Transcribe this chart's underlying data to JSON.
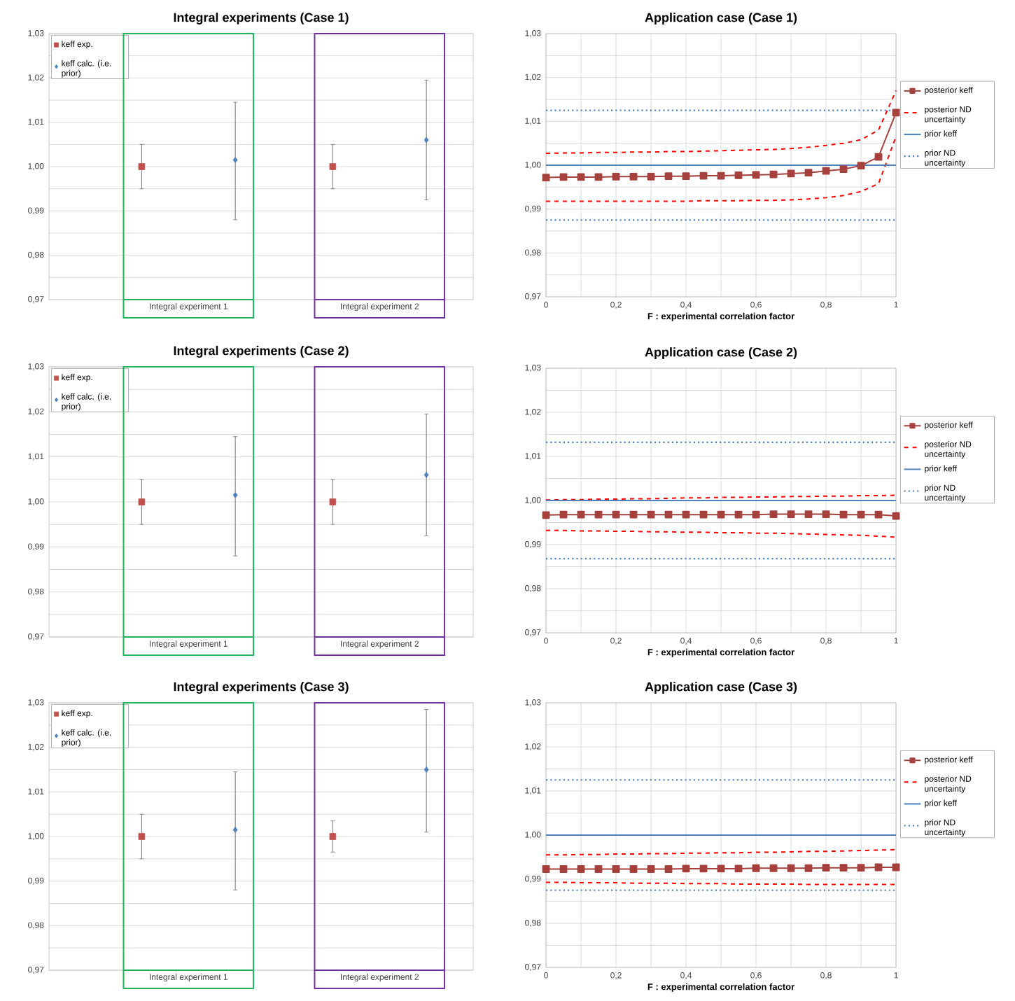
{
  "chart_data": [
    {
      "type": "scatter",
      "title": "Integral experiments (Case 1)",
      "categories": [
        "Integral experiment 1",
        "Integral experiment 2"
      ],
      "ylim": [
        0.97,
        1.03
      ],
      "yticks": [
        {
          "value": 0.97,
          "label": "0,97"
        },
        {
          "value": 0.975,
          "label": null
        },
        {
          "value": 0.98,
          "label": "0,98"
        },
        {
          "value": 0.985,
          "label": null
        },
        {
          "value": 0.99,
          "label": "0,99"
        },
        {
          "value": 0.995,
          "label": null
        },
        {
          "value": 1.0,
          "label": "1,00"
        },
        {
          "value": 1.005,
          "label": null
        },
        {
          "value": 1.01,
          "label": "1,01"
        },
        {
          "value": 1.015,
          "label": null
        },
        {
          "value": 1.02,
          "label": "1,02"
        },
        {
          "value": 1.025,
          "label": null
        },
        {
          "value": 1.03,
          "label": "1,03"
        }
      ],
      "grid": "y",
      "legend": "top left",
      "series": [
        {
          "name": "keff exp.",
          "color": "#c0504d",
          "marker": "square",
          "values": [
            1.0,
            1.0
          ],
          "errors": [
            0.005,
            0.005
          ]
        },
        {
          "name": "keff calc. (i.e. prior)",
          "color": "#4f81bd",
          "marker": "diamond",
          "values": [
            1.0015,
            1.006
          ],
          "errors": [
            [
              0.988,
              1.0145
            ],
            [
              0.9925,
              1.0195
            ]
          ]
        }
      ]
    },
    {
      "type": "line",
      "title": "Application case (Case 1)",
      "xlabel": "F : experimental correlation factor",
      "x": [
        0,
        0.05,
        0.1,
        0.15,
        0.2,
        0.25,
        0.3,
        0.35,
        0.4,
        0.45,
        0.5,
        0.55,
        0.6,
        0.65,
        0.7,
        0.75,
        0.8,
        0.85,
        0.9,
        0.95,
        1
      ],
      "xlim": [
        0,
        1
      ],
      "xticks": [
        {
          "value": 0,
          "label": "0"
        },
        {
          "value": 0.1,
          "label": null
        },
        {
          "value": 0.2,
          "label": "0,2"
        },
        {
          "value": 0.3,
          "label": null
        },
        {
          "value": 0.4,
          "label": "0,4"
        },
        {
          "value": 0.5,
          "label": null
        },
        {
          "value": 0.6,
          "label": "0,6"
        },
        {
          "value": 0.7,
          "label": null
        },
        {
          "value": 0.8,
          "label": "0,8"
        },
        {
          "value": 0.9,
          "label": null
        },
        {
          "value": 1,
          "label": "1"
        }
      ],
      "ylim": [
        0.97,
        1.03
      ],
      "yticks": [
        {
          "value": 0.97,
          "label": "0,97"
        },
        {
          "value": 0.975,
          "label": null
        },
        {
          "value": 0.98,
          "label": "0,98"
        },
        {
          "value": 0.985,
          "label": null
        },
        {
          "value": 0.99,
          "label": "0,99"
        },
        {
          "value": 0.995,
          "label": null
        },
        {
          "value": 1.0,
          "label": "1,00"
        },
        {
          "value": 1.005,
          "label": null
        },
        {
          "value": 1.01,
          "label": "1,01"
        },
        {
          "value": 1.015,
          "label": null
        },
        {
          "value": 1.02,
          "label": "1,02"
        },
        {
          "value": 1.025,
          "label": null
        },
        {
          "value": 1.03,
          "label": "1,03"
        }
      ],
      "grid": true,
      "legend": "right",
      "series": [
        {
          "name": "posterior keff",
          "color": "#a5403d",
          "marker": "square",
          "line_style": "solid",
          "values": [
            0.9972,
            0.9973,
            0.9973,
            0.9973,
            0.9974,
            0.9974,
            0.9974,
            0.9975,
            0.9975,
            0.9976,
            0.9976,
            0.9977,
            0.9978,
            0.9979,
            0.9981,
            0.9983,
            0.9987,
            0.9991,
            0.9999,
            1.0019,
            1.012
          ]
        },
        {
          "name": "posterior ND uncertainty",
          "color": "#ff0000",
          "marker": "none",
          "line_style": "dashed",
          "values": [
            1.0027,
            1.0028,
            1.0028,
            1.0029,
            1.0029,
            1.003,
            1.003,
            1.0031,
            1.0031,
            1.0032,
            1.0033,
            1.0034,
            1.0035,
            1.0036,
            1.0038,
            1.0041,
            1.0045,
            1.005,
            1.0058,
            1.008,
            1.017
          ]
        },
        {
          "color": "#ff0000",
          "marker": "none",
          "line_style": "dashed",
          "values": [
            0.9918,
            0.9918,
            0.9918,
            0.9918,
            0.9918,
            0.9918,
            0.9918,
            0.9918,
            0.9918,
            0.9919,
            0.9919,
            0.9919,
            0.992,
            0.992,
            0.9921,
            0.9923,
            0.9926,
            0.9931,
            0.994,
            0.9958,
            1.0065
          ]
        }
      ],
      "ref_lines": [
        {
          "axis": "y",
          "value": 1.0,
          "label": "prior keff",
          "color": "#4f81bd",
          "line_style": "solid"
        },
        {
          "axis": "y",
          "value": 1.0125,
          "label": "prior ND uncertainty",
          "color": "#4f81bd",
          "line_style": "dotted"
        },
        {
          "axis": "y",
          "value": 0.9875,
          "color": "#4f81bd",
          "line_style": "dotted"
        }
      ]
    },
    {
      "type": "scatter",
      "title": "Integral experiments (Case 2)",
      "categories": [
        "Integral experiment 1",
        "Integral experiment 2"
      ],
      "ylim": [
        0.97,
        1.03
      ],
      "yticks": [
        {
          "value": 0.97,
          "label": "0,97"
        },
        {
          "value": 0.975,
          "label": null
        },
        {
          "value": 0.98,
          "label": "0,98"
        },
        {
          "value": 0.985,
          "label": null
        },
        {
          "value": 0.99,
          "label": "0,99"
        },
        {
          "value": 0.995,
          "label": null
        },
        {
          "value": 1.0,
          "label": "1,00"
        },
        {
          "value": 1.005,
          "label": null
        },
        {
          "value": 1.01,
          "label": "1,01"
        },
        {
          "value": 1.015,
          "label": null
        },
        {
          "value": 1.02,
          "label": "1,02"
        },
        {
          "value": 1.025,
          "label": null
        },
        {
          "value": 1.03,
          "label": "1,03"
        }
      ],
      "grid": "y",
      "legend": "top left",
      "series": [
        {
          "name": "keff exp.",
          "color": "#c0504d",
          "marker": "square",
          "values": [
            1.0,
            1.0
          ],
          "errors": [
            0.005,
            0.005
          ]
        },
        {
          "name": "keff calc. (i.e. prior)",
          "color": "#4f81bd",
          "marker": "diamond",
          "values": [
            1.0015,
            1.006
          ],
          "errors": [
            [
              0.988,
              1.0145
            ],
            [
              0.9925,
              1.0195
            ]
          ]
        }
      ]
    },
    {
      "type": "line",
      "title": "Application case (Case 2)",
      "xlabel": "F : experimental correlation factor",
      "x": [
        0,
        0.05,
        0.1,
        0.15,
        0.2,
        0.25,
        0.3,
        0.35,
        0.4,
        0.45,
        0.5,
        0.55,
        0.6,
        0.65,
        0.7,
        0.75,
        0.8,
        0.85,
        0.9,
        0.95,
        1
      ],
      "xlim": [
        0,
        1
      ],
      "xticks": [
        {
          "value": 0,
          "label": "0"
        },
        {
          "value": 0.1,
          "label": null
        },
        {
          "value": 0.2,
          "label": "0,2"
        },
        {
          "value": 0.3,
          "label": null
        },
        {
          "value": 0.4,
          "label": "0,4"
        },
        {
          "value": 0.5,
          "label": null
        },
        {
          "value": 0.6,
          "label": "0,6"
        },
        {
          "value": 0.7,
          "label": null
        },
        {
          "value": 0.8,
          "label": "0,8"
        },
        {
          "value": 0.9,
          "label": null
        },
        {
          "value": 1,
          "label": "1"
        }
      ],
      "ylim": [
        0.97,
        1.03
      ],
      "yticks": [
        {
          "value": 0.97,
          "label": "0,97"
        },
        {
          "value": 0.975,
          "label": null
        },
        {
          "value": 0.98,
          "label": "0,98"
        },
        {
          "value": 0.985,
          "label": null
        },
        {
          "value": 0.99,
          "label": "0,99"
        },
        {
          "value": 0.995,
          "label": null
        },
        {
          "value": 1.0,
          "label": "1,00"
        },
        {
          "value": 1.005,
          "label": null
        },
        {
          "value": 1.01,
          "label": "1,01"
        },
        {
          "value": 1.015,
          "label": null
        },
        {
          "value": 1.02,
          "label": "1,02"
        },
        {
          "value": 1.025,
          "label": null
        },
        {
          "value": 1.03,
          "label": "1,03"
        }
      ],
      "grid": true,
      "legend": "right",
      "series": [
        {
          "name": "posterior keff",
          "color": "#a5403d",
          "marker": "square",
          "line_style": "solid",
          "values": [
            0.9967,
            0.9968,
            0.9968,
            0.9968,
            0.9968,
            0.9968,
            0.9968,
            0.9968,
            0.9968,
            0.9968,
            0.9968,
            0.9968,
            0.9968,
            0.9969,
            0.9969,
            0.9969,
            0.9969,
            0.9968,
            0.9968,
            0.9968,
            0.9965
          ]
        },
        {
          "name": "posterior ND uncertainty",
          "color": "#ff0000",
          "marker": "none",
          "line_style": "dashed",
          "values": [
            1.0001,
            1.0002,
            1.0002,
            1.0003,
            1.0003,
            1.0004,
            1.0004,
            1.0005,
            1.0006,
            1.0006,
            1.0007,
            1.0007,
            1.0008,
            1.0008,
            1.0009,
            1.0009,
            1.001,
            1.001,
            1.0011,
            1.0011,
            1.0012
          ]
        },
        {
          "color": "#ff0000",
          "marker": "none",
          "line_style": "dashed",
          "values": [
            0.9932,
            0.9932,
            0.9931,
            0.9931,
            0.993,
            0.993,
            0.9929,
            0.9929,
            0.9928,
            0.9928,
            0.9927,
            0.9927,
            0.9926,
            0.9926,
            0.9925,
            0.9924,
            0.9923,
            0.9922,
            0.9921,
            0.9919,
            0.9917
          ]
        }
      ],
      "ref_lines": [
        {
          "axis": "y",
          "value": 1.0,
          "label": "prior keff",
          "color": "#4f81bd",
          "line_style": "solid"
        },
        {
          "axis": "y",
          "value": 1.0132,
          "label": "prior ND uncertainty",
          "color": "#4f81bd",
          "line_style": "dotted"
        },
        {
          "axis": "y",
          "value": 0.9868,
          "color": "#4f81bd",
          "line_style": "dotted"
        }
      ]
    },
    {
      "type": "scatter",
      "title": "Integral experiments (Case 3)",
      "categories": [
        "Integral experiment 1",
        "Integral experiment 2"
      ],
      "ylim": [
        0.97,
        1.03
      ],
      "yticks": [
        {
          "value": 0.97,
          "label": "0,97"
        },
        {
          "value": 0.975,
          "label": null
        },
        {
          "value": 0.98,
          "label": "0,98"
        },
        {
          "value": 0.985,
          "label": null
        },
        {
          "value": 0.99,
          "label": "0,99"
        },
        {
          "value": 0.995,
          "label": null
        },
        {
          "value": 1.0,
          "label": "1,00"
        },
        {
          "value": 1.005,
          "label": null
        },
        {
          "value": 1.01,
          "label": "1,01"
        },
        {
          "value": 1.015,
          "label": null
        },
        {
          "value": 1.02,
          "label": "1,02"
        },
        {
          "value": 1.025,
          "label": null
        },
        {
          "value": 1.03,
          "label": "1,03"
        }
      ],
      "grid": "y",
      "legend": "top left",
      "series": [
        {
          "name": "keff exp.",
          "color": "#c0504d",
          "marker": "square",
          "values": [
            1.0,
            1.0
          ],
          "errors": [
            0.005,
            [
              0.9965,
              1.0035
            ]
          ]
        },
        {
          "name": "keff calc. (i.e. prior)",
          "color": "#4f81bd",
          "marker": "diamond",
          "values": [
            1.0015,
            1.015
          ],
          "errors": [
            [
              0.988,
              1.0145
            ],
            [
              1.001,
              1.0285
            ]
          ]
        }
      ]
    },
    {
      "type": "line",
      "title": "Application case (Case 3)",
      "xlabel": "F : experimental correlation factor",
      "x": [
        0,
        0.05,
        0.1,
        0.15,
        0.2,
        0.25,
        0.3,
        0.35,
        0.4,
        0.45,
        0.5,
        0.55,
        0.6,
        0.65,
        0.7,
        0.75,
        0.8,
        0.85,
        0.9,
        0.95,
        1
      ],
      "xlim": [
        0,
        1
      ],
      "xticks": [
        {
          "value": 0,
          "label": "0"
        },
        {
          "value": 0.1,
          "label": null
        },
        {
          "value": 0.2,
          "label": "0,2"
        },
        {
          "value": 0.3,
          "label": null
        },
        {
          "value": 0.4,
          "label": "0,4"
        },
        {
          "value": 0.5,
          "label": null
        },
        {
          "value": 0.6,
          "label": "0,6"
        },
        {
          "value": 0.7,
          "label": null
        },
        {
          "value": 0.8,
          "label": "0,8"
        },
        {
          "value": 0.9,
          "label": null
        },
        {
          "value": 1,
          "label": "1"
        }
      ],
      "ylim": [
        0.97,
        1.03
      ],
      "yticks": [
        {
          "value": 0.97,
          "label": "0,97"
        },
        {
          "value": 0.975,
          "label": null
        },
        {
          "value": 0.98,
          "label": "0,98"
        },
        {
          "value": 0.985,
          "label": null
        },
        {
          "value": 0.99,
          "label": "0,99"
        },
        {
          "value": 0.995,
          "label": null
        },
        {
          "value": 1.0,
          "label": "1,00"
        },
        {
          "value": 1.005,
          "label": null
        },
        {
          "value": 1.01,
          "label": "1,01"
        },
        {
          "value": 1.015,
          "label": null
        },
        {
          "value": 1.02,
          "label": "1,02"
        },
        {
          "value": 1.025,
          "label": null
        },
        {
          "value": 1.03,
          "label": "1,03"
        }
      ],
      "grid": true,
      "legend": "right",
      "series": [
        {
          "name": "posterior keff",
          "color": "#a5403d",
          "marker": "square",
          "line_style": "solid",
          "values": [
            0.9923,
            0.9923,
            0.9923,
            0.9923,
            0.9923,
            0.9923,
            0.9923,
            0.9923,
            0.9924,
            0.9924,
            0.9924,
            0.9924,
            0.9925,
            0.9925,
            0.9925,
            0.9925,
            0.9926,
            0.9926,
            0.9926,
            0.9927,
            0.9927
          ]
        },
        {
          "name": "posterior ND uncertainty",
          "color": "#ff0000",
          "marker": "none",
          "line_style": "dashed",
          "values": [
            0.9955,
            0.9955,
            0.9956,
            0.9956,
            0.9957,
            0.9957,
            0.9958,
            0.9958,
            0.9959,
            0.9959,
            0.996,
            0.996,
            0.9961,
            0.9961,
            0.9962,
            0.9963,
            0.9963,
            0.9964,
            0.9965,
            0.9966,
            0.9967
          ]
        },
        {
          "color": "#ff0000",
          "marker": "none",
          "line_style": "dashed",
          "values": [
            0.9893,
            0.9893,
            0.9892,
            0.9892,
            0.9892,
            0.9891,
            0.9891,
            0.9891,
            0.989,
            0.989,
            0.989,
            0.9889,
            0.9889,
            0.9889,
            0.9889,
            0.9888,
            0.9888,
            0.9888,
            0.9888,
            0.9888,
            0.9888
          ]
        }
      ],
      "ref_lines": [
        {
          "axis": "y",
          "value": 1.0,
          "label": "prior keff",
          "color": "#4f81bd",
          "line_style": "solid"
        },
        {
          "axis": "y",
          "value": 1.0125,
          "label": "prior ND uncertainty",
          "color": "#4f81bd",
          "line_style": "dotted"
        },
        {
          "axis": "y",
          "value": 0.9875,
          "color": "#4f81bd",
          "line_style": "dotted"
        }
      ]
    }
  ]
}
